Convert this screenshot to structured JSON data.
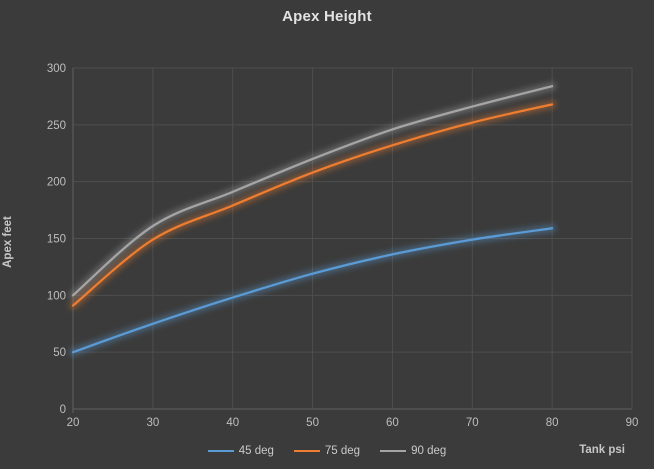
{
  "title": "Apex Height",
  "axes": {
    "x": {
      "title": "Tank psi",
      "ticks": [
        20,
        30,
        40,
        50,
        60,
        70,
        80,
        90
      ],
      "min": 20,
      "max": 90
    },
    "y": {
      "title": "Apex feet",
      "ticks": [
        0,
        50,
        100,
        150,
        200,
        250,
        300
      ],
      "min": 0,
      "max": 300
    }
  },
  "legend": {
    "position": "bottom",
    "items": [
      {
        "label": "45 deg",
        "color": "#5B9BD5"
      },
      {
        "label": "75 deg",
        "color": "#ED7D31"
      },
      {
        "label": "90 deg",
        "color": "#A5A5A5"
      }
    ]
  },
  "colors": {
    "background": "#3B3B3B",
    "gridline": "#4E4E4E",
    "axis_line": "#606060",
    "tick_text": "#BEBEBE",
    "title_text": "#E2E2E2",
    "axis_title_text": "#C6C6C6",
    "series_blue": "#5B9BD5",
    "series_orange": "#ED7D31",
    "series_gray": "#A5A5A5"
  },
  "chart_data": {
    "type": "line",
    "title": "Apex Height",
    "xlabel": "Tank psi",
    "ylabel": "Apex feet",
    "x": [
      20,
      30,
      40,
      50,
      60,
      70,
      80
    ],
    "series": [
      {
        "name": "45 deg",
        "color": "#5B9BD5",
        "values": [
          50,
          75,
          98,
          119,
          136,
          149,
          159
        ]
      },
      {
        "name": "75 deg",
        "color": "#ED7D31",
        "values": [
          91,
          149,
          179,
          208,
          232,
          252,
          268
        ]
      },
      {
        "name": "90 deg",
        "color": "#A5A5A5",
        "values": [
          100,
          161,
          191,
          220,
          246,
          266,
          284
        ]
      }
    ],
    "xlim": [
      20,
      90
    ],
    "ylim": [
      0,
      300
    ],
    "grid": true,
    "legend_position": "bottom",
    "line_style": "smooth-with-glow"
  }
}
